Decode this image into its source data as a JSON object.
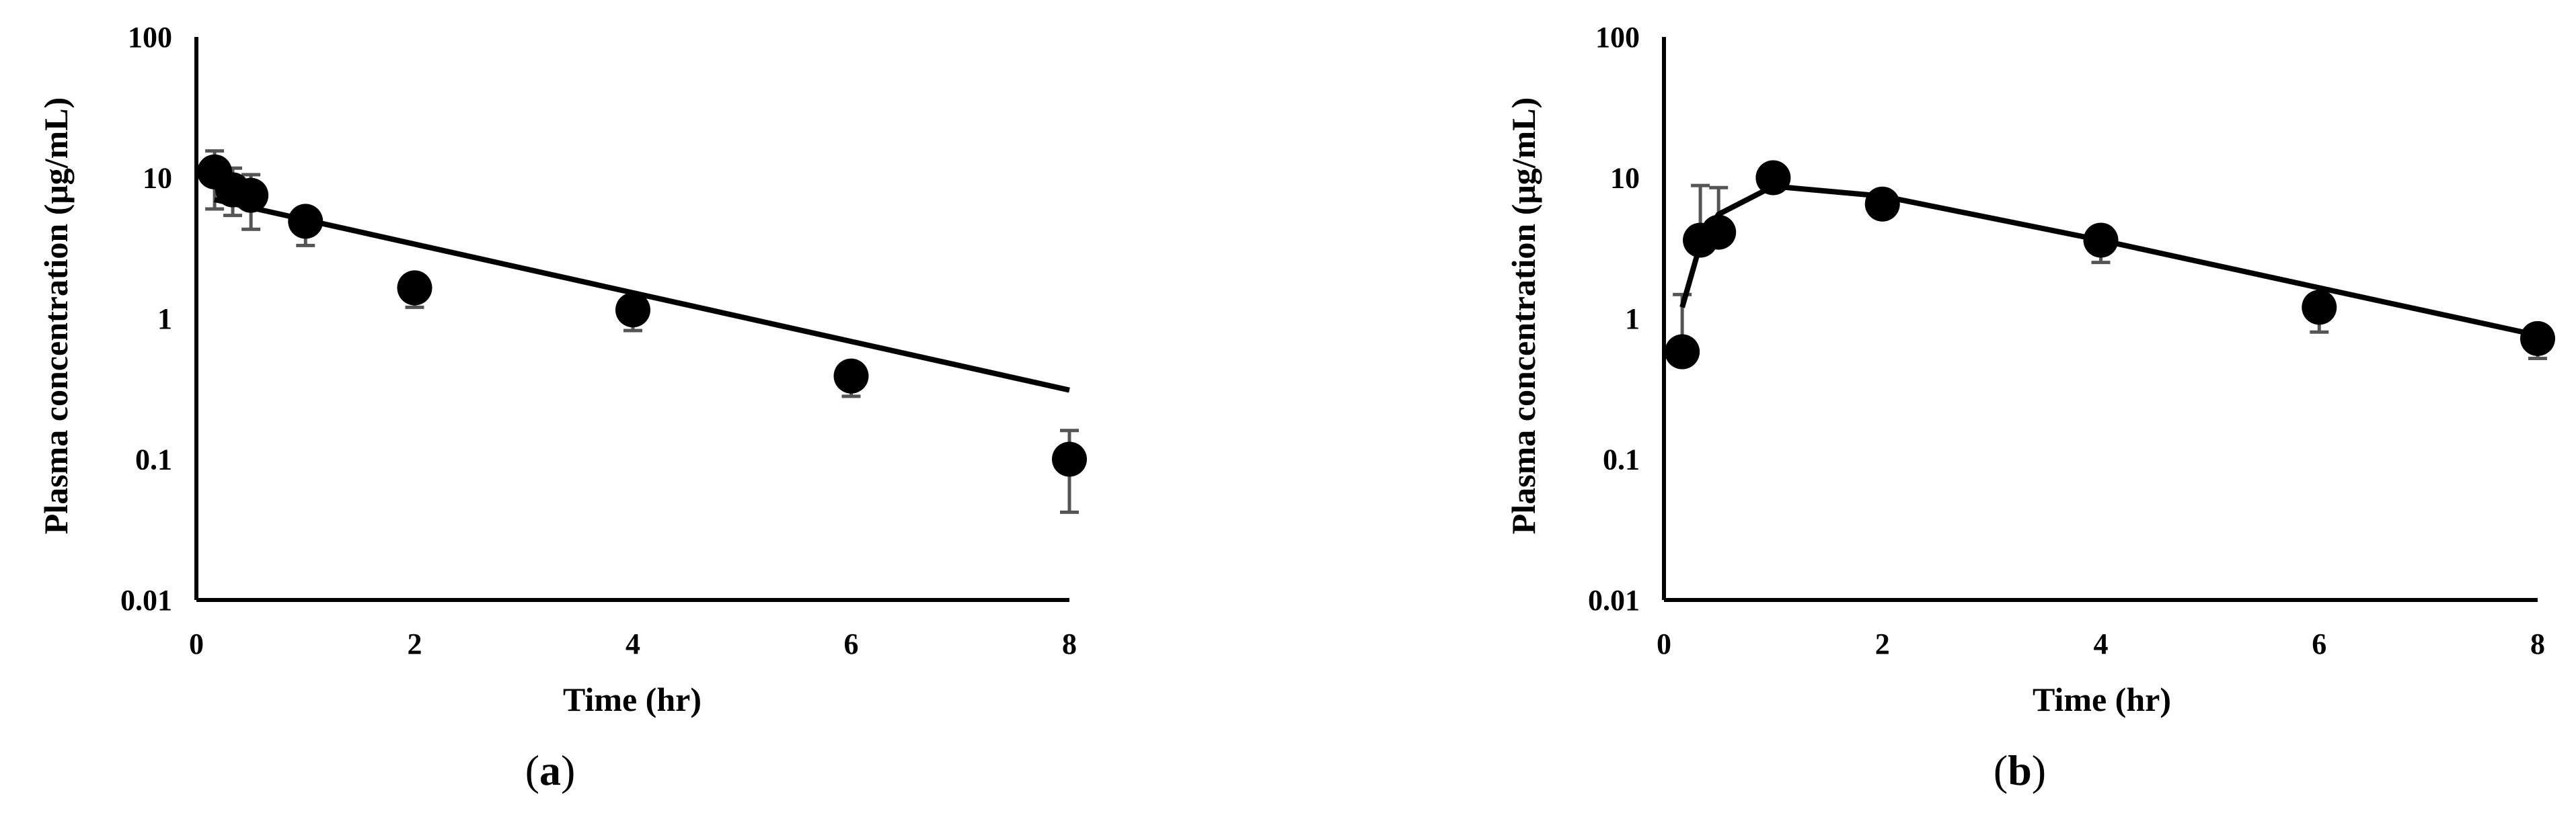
{
  "panels": [
    {
      "label_open": "(",
      "label_letter": "a",
      "label_close": ")"
    },
    {
      "label_open": "(",
      "label_letter": "b",
      "label_close": ")"
    }
  ],
  "chart_data": [
    {
      "type": "scatter",
      "xlabel": "Time (hr)",
      "ylabel": "Plasma concentration (μg/mL)",
      "xlim": [
        0,
        8
      ],
      "ylim": [
        0.01,
        100
      ],
      "yscale": "log",
      "x_ticks": [
        "0",
        "2",
        "4",
        "6",
        "8"
      ],
      "y_ticks": [
        "0.01",
        "0.1",
        "1",
        "10",
        "100"
      ],
      "grid": false,
      "series": [
        {
          "style": "markers",
          "x": [
            0.167,
            0.333,
            0.5,
            1,
            2,
            4,
            6,
            8
          ],
          "y": [
            11.0,
            8.2,
            7.5,
            4.9,
            1.65,
            1.15,
            0.39,
            0.1
          ],
          "err_up": [
            4.5,
            3.5,
            3.0,
            1.0,
            0.0,
            0.0,
            0.0,
            0.06
          ],
          "err_down": [
            5.0,
            2.8,
            3.2,
            1.6,
            0.45,
            0.33,
            0.11,
            0.058
          ]
        },
        {
          "style": "line",
          "x": [
            0.167,
            8
          ],
          "y": [
            7.0,
            0.31
          ]
        }
      ]
    },
    {
      "type": "scatter",
      "xlabel": "Time (hr)",
      "ylabel": "Plasma concentration (μg/mL)",
      "xlim": [
        0,
        8
      ],
      "ylim": [
        0.01,
        100
      ],
      "yscale": "log",
      "x_ticks": [
        "0",
        "2",
        "4",
        "6",
        "8"
      ],
      "y_ticks": [
        "0.01",
        "0.1",
        "1",
        "10",
        "100"
      ],
      "grid": false,
      "series": [
        {
          "style": "markers",
          "x": [
            0.167,
            0.333,
            0.5,
            1,
            2,
            4,
            6,
            8
          ],
          "y": [
            0.58,
            3.6,
            4.1,
            10.0,
            6.5,
            3.6,
            1.2,
            0.72
          ],
          "err_up": [
            0.9,
            5.2,
            4.4,
            0.0,
            0.0,
            0.0,
            0.0,
            0.0
          ],
          "err_down": [
            0.0,
            0.0,
            0.0,
            0.0,
            0.0,
            1.1,
            0.4,
            0.2
          ]
        },
        {
          "style": "line",
          "x": [
            0.167,
            0.333,
            0.5,
            1,
            2,
            4,
            6,
            8
          ],
          "y": [
            1.2,
            3.4,
            5.5,
            8.7,
            7.4,
            3.6,
            1.65,
            0.76
          ]
        }
      ]
    }
  ]
}
